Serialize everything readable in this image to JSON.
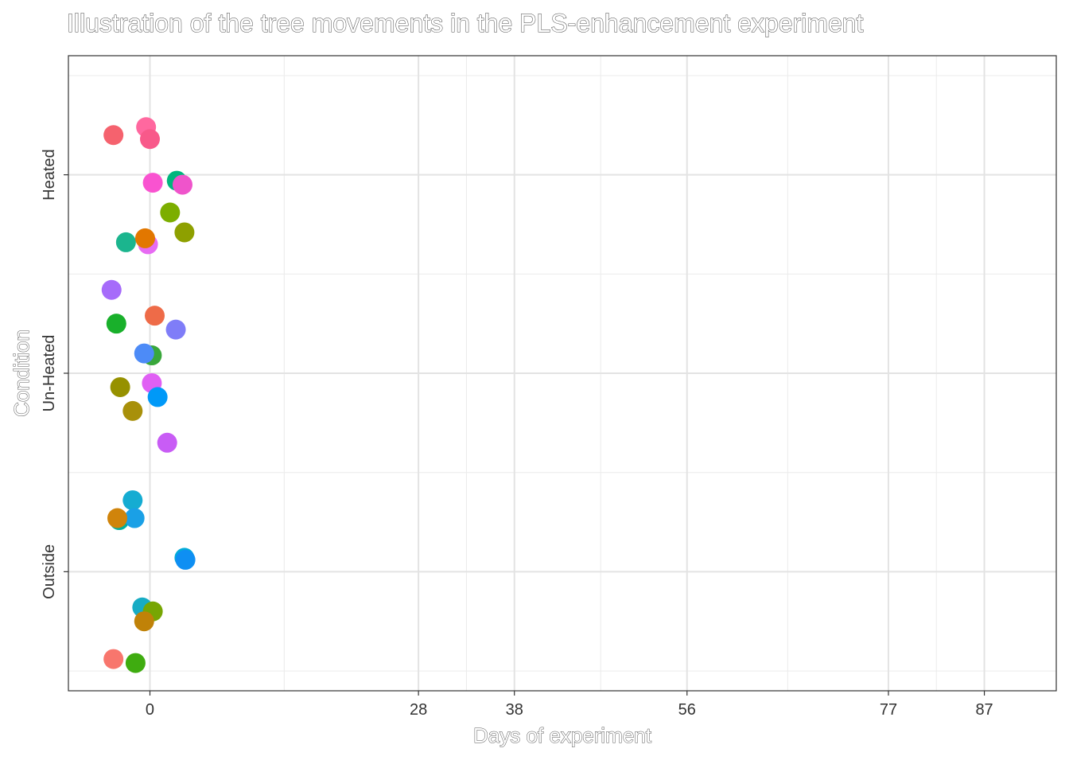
{
  "chart_data": {
    "type": "scatter",
    "title": "Illustration of the tree movements in the PLS-enhancement experiment",
    "xlabel": "Days of experiment",
    "ylabel": "Condition",
    "x_ticks": [
      0,
      28,
      38,
      56,
      77,
      87
    ],
    "xlim": [
      -8.5,
      94.5
    ],
    "y_categories": [
      "Outside",
      "Un-Heated",
      "Heated"
    ],
    "ylim": [
      0.4,
      3.6
    ],
    "grid": true,
    "legend": "none",
    "series": [
      {
        "color": "#F8766D",
        "points": [
          {
            "x": -3.8,
            "y": 0.56
          }
        ]
      },
      {
        "color": "#F5626E",
        "points": [
          {
            "x": -3.8,
            "y": 3.2
          }
        ]
      },
      {
        "color": "#FF689F",
        "points": [
          {
            "x": -0.4,
            "y": 3.24
          }
        ]
      },
      {
        "color": "#F8598A",
        "points": [
          {
            "x": 0.0,
            "y": 3.18
          }
        ]
      },
      {
        "color": "#F953D0",
        "points": [
          {
            "x": 0.3,
            "y": 2.96
          }
        ]
      },
      {
        "color": "#00B67D",
        "points": [
          {
            "x": 2.8,
            "y": 2.97
          }
        ]
      },
      {
        "color": "#EF54CB",
        "points": [
          {
            "x": 3.4,
            "y": 2.95
          }
        ]
      },
      {
        "color": "#7CAE00",
        "points": [
          {
            "x": 2.1,
            "y": 2.81
          }
        ]
      },
      {
        "color": "#8EA000",
        "points": [
          {
            "x": 3.6,
            "y": 2.71
          }
        ]
      },
      {
        "color": "#1BB58E",
        "points": [
          {
            "x": -2.5,
            "y": 2.66
          }
        ]
      },
      {
        "color": "#E76BF3",
        "points": [
          {
            "x": -0.2,
            "y": 2.65
          }
        ]
      },
      {
        "color": "#E27700",
        "points": [
          {
            "x": -0.5,
            "y": 2.68
          }
        ]
      },
      {
        "color": "#A66BFA",
        "points": [
          {
            "x": -4.0,
            "y": 2.42
          }
        ]
      },
      {
        "color": "#19B02B",
        "points": [
          {
            "x": -3.5,
            "y": 2.25
          }
        ]
      },
      {
        "color": "#EE6B48",
        "points": [
          {
            "x": 0.5,
            "y": 2.29
          }
        ]
      },
      {
        "color": "#7F7DF8",
        "points": [
          {
            "x": 2.7,
            "y": 2.22
          }
        ]
      },
      {
        "color": "#39A73B",
        "points": [
          {
            "x": 0.2,
            "y": 2.09
          }
        ]
      },
      {
        "color": "#4D8BF7",
        "points": [
          {
            "x": -0.6,
            "y": 2.1
          }
        ]
      },
      {
        "color": "#969100",
        "points": [
          {
            "x": -3.1,
            "y": 1.93
          }
        ]
      },
      {
        "color": "#E060F4",
        "points": [
          {
            "x": 0.2,
            "y": 1.95
          }
        ]
      },
      {
        "color": "#0099F8",
        "points": [
          {
            "x": 0.8,
            "y": 1.88
          }
        ]
      },
      {
        "color": "#A8900A",
        "points": [
          {
            "x": -1.8,
            "y": 1.81
          }
        ]
      },
      {
        "color": "#C85CF5",
        "points": [
          {
            "x": 1.8,
            "y": 1.65
          }
        ]
      },
      {
        "color": "#15ACD2",
        "points": [
          {
            "x": -1.8,
            "y": 1.36
          }
        ]
      },
      {
        "color": "#00AFA0",
        "points": [
          {
            "x": -3.2,
            "y": 1.26
          }
        ]
      },
      {
        "color": "#1AA0E6",
        "points": [
          {
            "x": -1.6,
            "y": 1.27
          }
        ]
      },
      {
        "color": "#D0840B",
        "points": [
          {
            "x": -3.4,
            "y": 1.27
          }
        ]
      },
      {
        "color": "#02ABD9",
        "points": [
          {
            "x": 3.6,
            "y": 1.07
          }
        ]
      },
      {
        "color": "#0E8FF3",
        "points": [
          {
            "x": 3.7,
            "y": 1.06
          }
        ]
      },
      {
        "color": "#17ACC4",
        "points": [
          {
            "x": -0.8,
            "y": 0.82
          }
        ]
      },
      {
        "color": "#77A603",
        "points": [
          {
            "x": 0.3,
            "y": 0.8
          }
        ]
      },
      {
        "color": "#C08208",
        "points": [
          {
            "x": -0.6,
            "y": 0.75
          }
        ]
      },
      {
        "color": "#3FAC10",
        "points": [
          {
            "x": -1.5,
            "y": 0.54
          }
        ]
      }
    ]
  }
}
